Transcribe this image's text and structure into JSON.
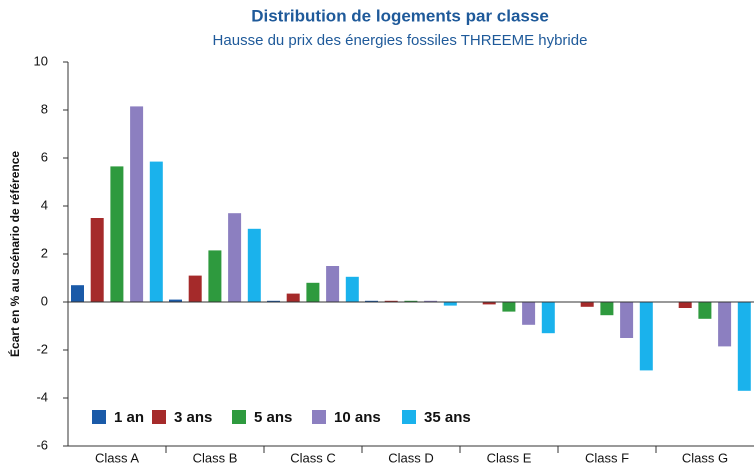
{
  "chart_data": {
    "type": "bar",
    "title": "Distribution de logements par classe",
    "subtitle": "Hausse du prix des énergies fossiles THREEME hybride",
    "y_label": "Écart en % au scénario de référence",
    "categories": [
      "Class A",
      "Class B",
      "Class C",
      "Class D",
      "Class E",
      "Class F",
      "Class G"
    ],
    "series": [
      {
        "name": "1 an",
        "color": "#1a5aa8",
        "values": [
          0.7,
          0.1,
          0.05,
          0.05,
          0,
          0,
          0
        ]
      },
      {
        "name": "3 ans",
        "color": "#a52a2a",
        "values": [
          3.5,
          1.1,
          0.35,
          0.05,
          -0.1,
          -0.2,
          -0.25
        ]
      },
      {
        "name": "5 ans",
        "color": "#2e9a3e",
        "values": [
          5.65,
          2.15,
          0.8,
          0.05,
          -0.4,
          -0.55,
          -0.7
        ]
      },
      {
        "name": "10 ans",
        "color": "#8c7fc0",
        "values": [
          8.15,
          3.7,
          1.5,
          0.05,
          -0.95,
          -1.5,
          -1.85
        ]
      },
      {
        "name": "35 ans",
        "color": "#1ab2ec",
        "values": [
          5.85,
          3.05,
          1.05,
          -0.15,
          -1.3,
          -2.85,
          -3.7
        ]
      }
    ],
    "ylim": [
      -6,
      10
    ],
    "yticks": [
      -6,
      -4,
      -2,
      0,
      2,
      4,
      6,
      8,
      10
    ],
    "legend": "lower left"
  }
}
